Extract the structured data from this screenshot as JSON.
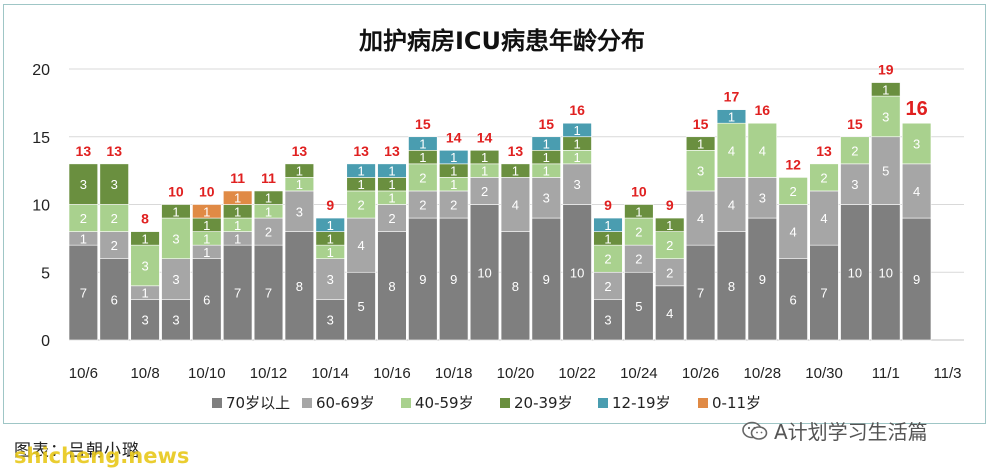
{
  "chart_data": {
    "type": "bar",
    "stacked": true,
    "title": "加护病房ICU病患年龄分布",
    "categories": [
      "10/6",
      "10/7",
      "10/8",
      "10/9",
      "10/10",
      "10/11",
      "10/12",
      "10/13",
      "10/14",
      "10/15",
      "10/16",
      "10/17",
      "10/18",
      "10/19",
      "10/20",
      "10/21",
      "10/22",
      "10/23",
      "10/24",
      "10/25",
      "10/26",
      "10/27",
      "10/28",
      "10/29",
      "10/30",
      "10/31",
      "11/1",
      "11/2"
    ],
    "x_tick_labels": [
      "10/6",
      "10/8",
      "10/10",
      "10/12",
      "10/14",
      "10/16",
      "10/18",
      "10/20",
      "10/22",
      "10/24",
      "10/26",
      "10/28",
      "10/30",
      "11/1",
      "11/3"
    ],
    "y_ticks": [
      "0",
      "5",
      "10",
      "15",
      "20"
    ],
    "ylim": [
      0,
      20
    ],
    "grid": "horizontal",
    "legend_position": "bottom",
    "series": [
      {
        "name": "70岁以上",
        "color": "#7f7f7f",
        "values": [
          7,
          6,
          3,
          3,
          6,
          7,
          7,
          8,
          3,
          5,
          8,
          9,
          9,
          10,
          8,
          9,
          10,
          3,
          5,
          4,
          7,
          8,
          9,
          6,
          7,
          10,
          10,
          9
        ]
      },
      {
        "name": "60-69岁",
        "color": "#a6a6a6",
        "values": [
          1,
          2,
          1,
          3,
          1,
          1,
          2,
          3,
          3,
          4,
          2,
          2,
          2,
          2,
          4,
          3,
          3,
          2,
          2,
          2,
          4,
          4,
          3,
          4,
          4,
          3,
          5,
          4
        ]
      },
      {
        "name": "40-59岁",
        "color": "#a9d18e",
        "values": [
          2,
          2,
          3,
          3,
          1,
          1,
          1,
          1,
          1,
          2,
          1,
          2,
          1,
          1,
          0,
          1,
          1,
          2,
          2,
          2,
          3,
          4,
          4,
          2,
          2,
          2,
          3,
          3
        ]
      },
      {
        "name": "20-39岁",
        "color": "#6a8f3f",
        "values": [
          3,
          3,
          1,
          1,
          1,
          1,
          1,
          1,
          1,
          1,
          1,
          1,
          1,
          1,
          1,
          1,
          1,
          1,
          1,
          1,
          1,
          0,
          0,
          0,
          0,
          0,
          1,
          0
        ]
      },
      {
        "name": "12-19岁",
        "color": "#4a9db0",
        "values": [
          0,
          0,
          0,
          0,
          0,
          0,
          0,
          0,
          1,
          1,
          1,
          1,
          1,
          0,
          0,
          1,
          1,
          1,
          0,
          0,
          0,
          1,
          0,
          0,
          0,
          0,
          0,
          0
        ]
      },
      {
        "name": "0-11岁",
        "color": "#e08a45",
        "values": [
          0,
          0,
          0,
          0,
          1,
          1,
          0,
          0,
          0,
          0,
          0,
          0,
          0,
          0,
          0,
          0,
          0,
          0,
          0,
          0,
          0,
          0,
          0,
          0,
          0,
          0,
          0,
          0
        ]
      }
    ],
    "totals": [
      13,
      13,
      8,
      10,
      10,
      11,
      11,
      13,
      9,
      13,
      13,
      15,
      14,
      14,
      13,
      15,
      16,
      9,
      10,
      9,
      15,
      17,
      16,
      12,
      13,
      15,
      19,
      16
    ],
    "total_color": "#e02020"
  },
  "caption": "图表：吕朝小璐",
  "watermark": "shicheng.news",
  "wechat_account": "A计划学习生活篇"
}
